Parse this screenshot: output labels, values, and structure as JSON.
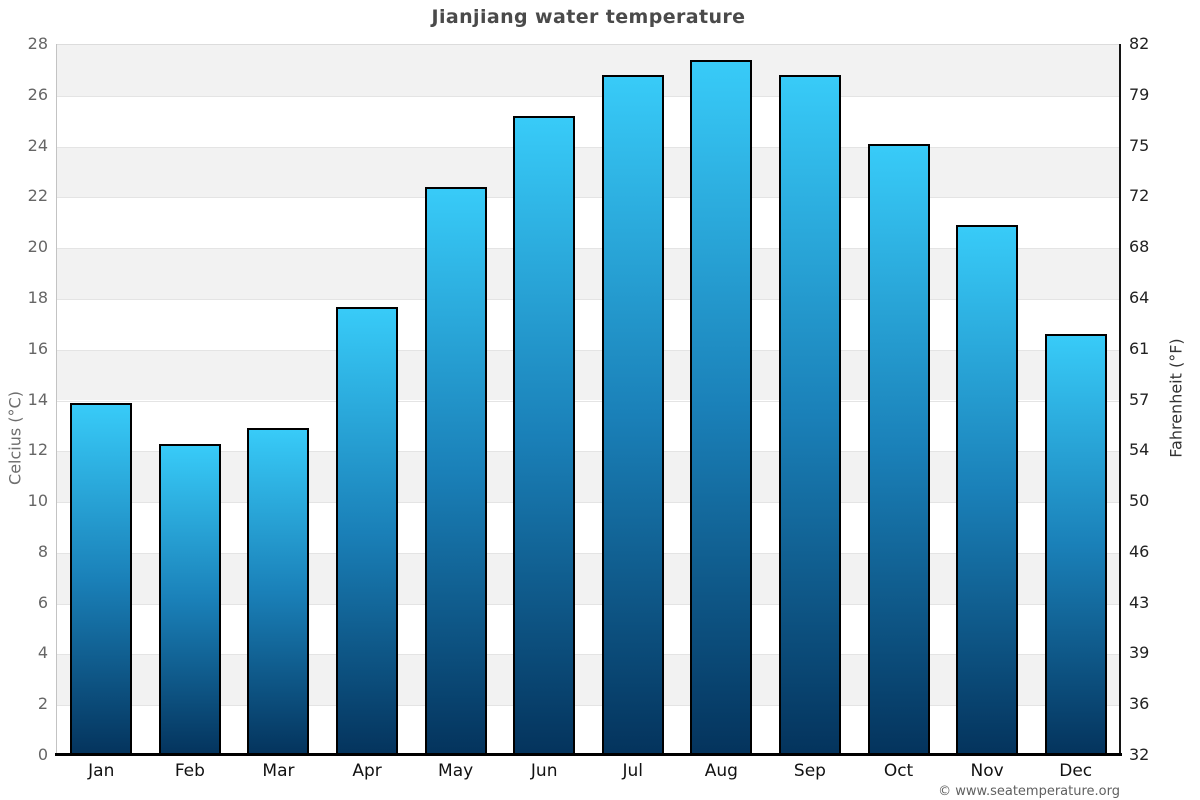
{
  "title": "Jianjiang water temperature",
  "footer": {
    "credit": "© www.seatemperature.org"
  },
  "chart_data": {
    "type": "bar",
    "title": "Jianjiang water temperature",
    "categories": [
      "Jan",
      "Feb",
      "Mar",
      "Apr",
      "May",
      "Jun",
      "Jul",
      "Aug",
      "Sep",
      "Oct",
      "Nov",
      "Dec"
    ],
    "values": [
      13.9,
      12.3,
      12.9,
      17.7,
      22.4,
      25.2,
      26.8,
      27.4,
      26.8,
      24.1,
      20.9,
      16.6
    ],
    "unit": "°C",
    "ylabel_left": "Celcius (°C)",
    "ylabel_right": "Fahrenheit (°F)",
    "ylim": [
      0,
      28
    ],
    "yticks_celsius": [
      28,
      26,
      24,
      22,
      20,
      18,
      16,
      14,
      12,
      10,
      8,
      6,
      4,
      2,
      0
    ],
    "yticks_fahrenheit": [
      82,
      79,
      75,
      72,
      68,
      64,
      61,
      57,
      54,
      50,
      46,
      43,
      39,
      36,
      32
    ],
    "grid": "zebra-bands",
    "legend": "none",
    "colors": {
      "bar_top": "#38cbf8",
      "bar_mid": "#1a80b8",
      "bar_bottom": "#04335c",
      "bar_border": "#000000",
      "band_gray": "#f2f2f2",
      "band_white": "#ffffff",
      "gridline": "#e4e4e4",
      "title_text": "#4a4a4a",
      "tick_text_left": "#666666",
      "tick_text_right": "#222222"
    }
  }
}
